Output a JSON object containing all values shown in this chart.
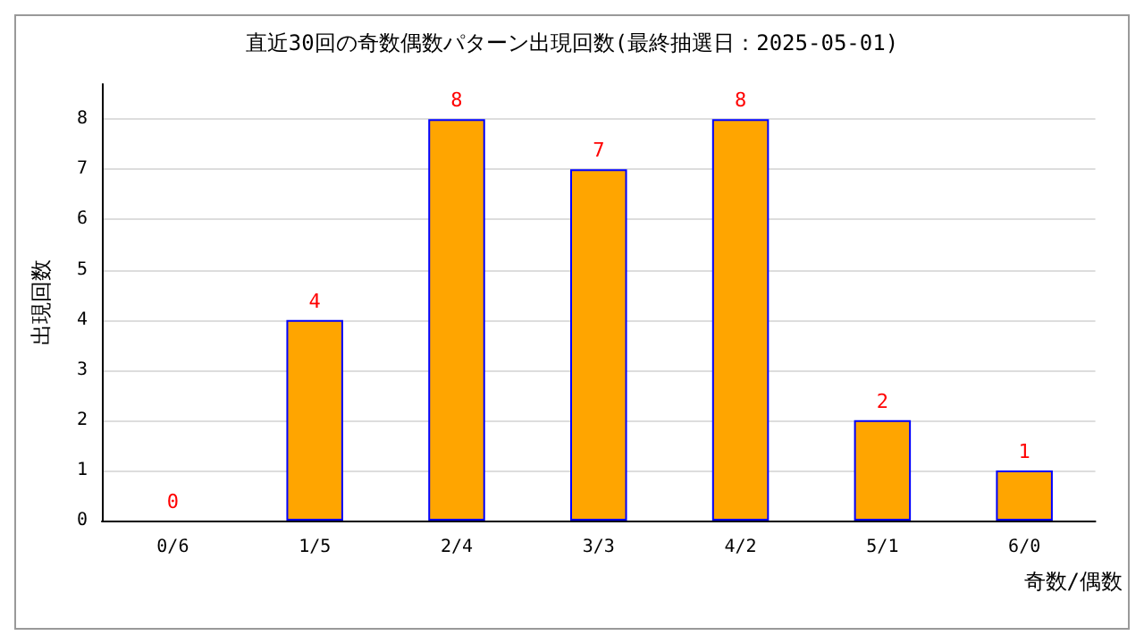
{
  "chart_data": {
    "type": "bar",
    "title": "直近30回の奇数偶数パターン出現回数(最終抽選日：2025-05-01)",
    "xlabel": "奇数/偶数",
    "ylabel": "出現回数",
    "categories": [
      "0/6",
      "1/5",
      "2/4",
      "3/3",
      "4/2",
      "5/1",
      "6/0"
    ],
    "values": [
      0,
      4,
      8,
      7,
      8,
      2,
      1
    ],
    "color": "#ffa500",
    "ylim": [
      0,
      8.7
    ],
    "yticks": [
      0,
      1,
      2,
      3,
      4,
      5,
      6,
      7,
      8
    ],
    "grid": "y",
    "data_labels": true
  }
}
